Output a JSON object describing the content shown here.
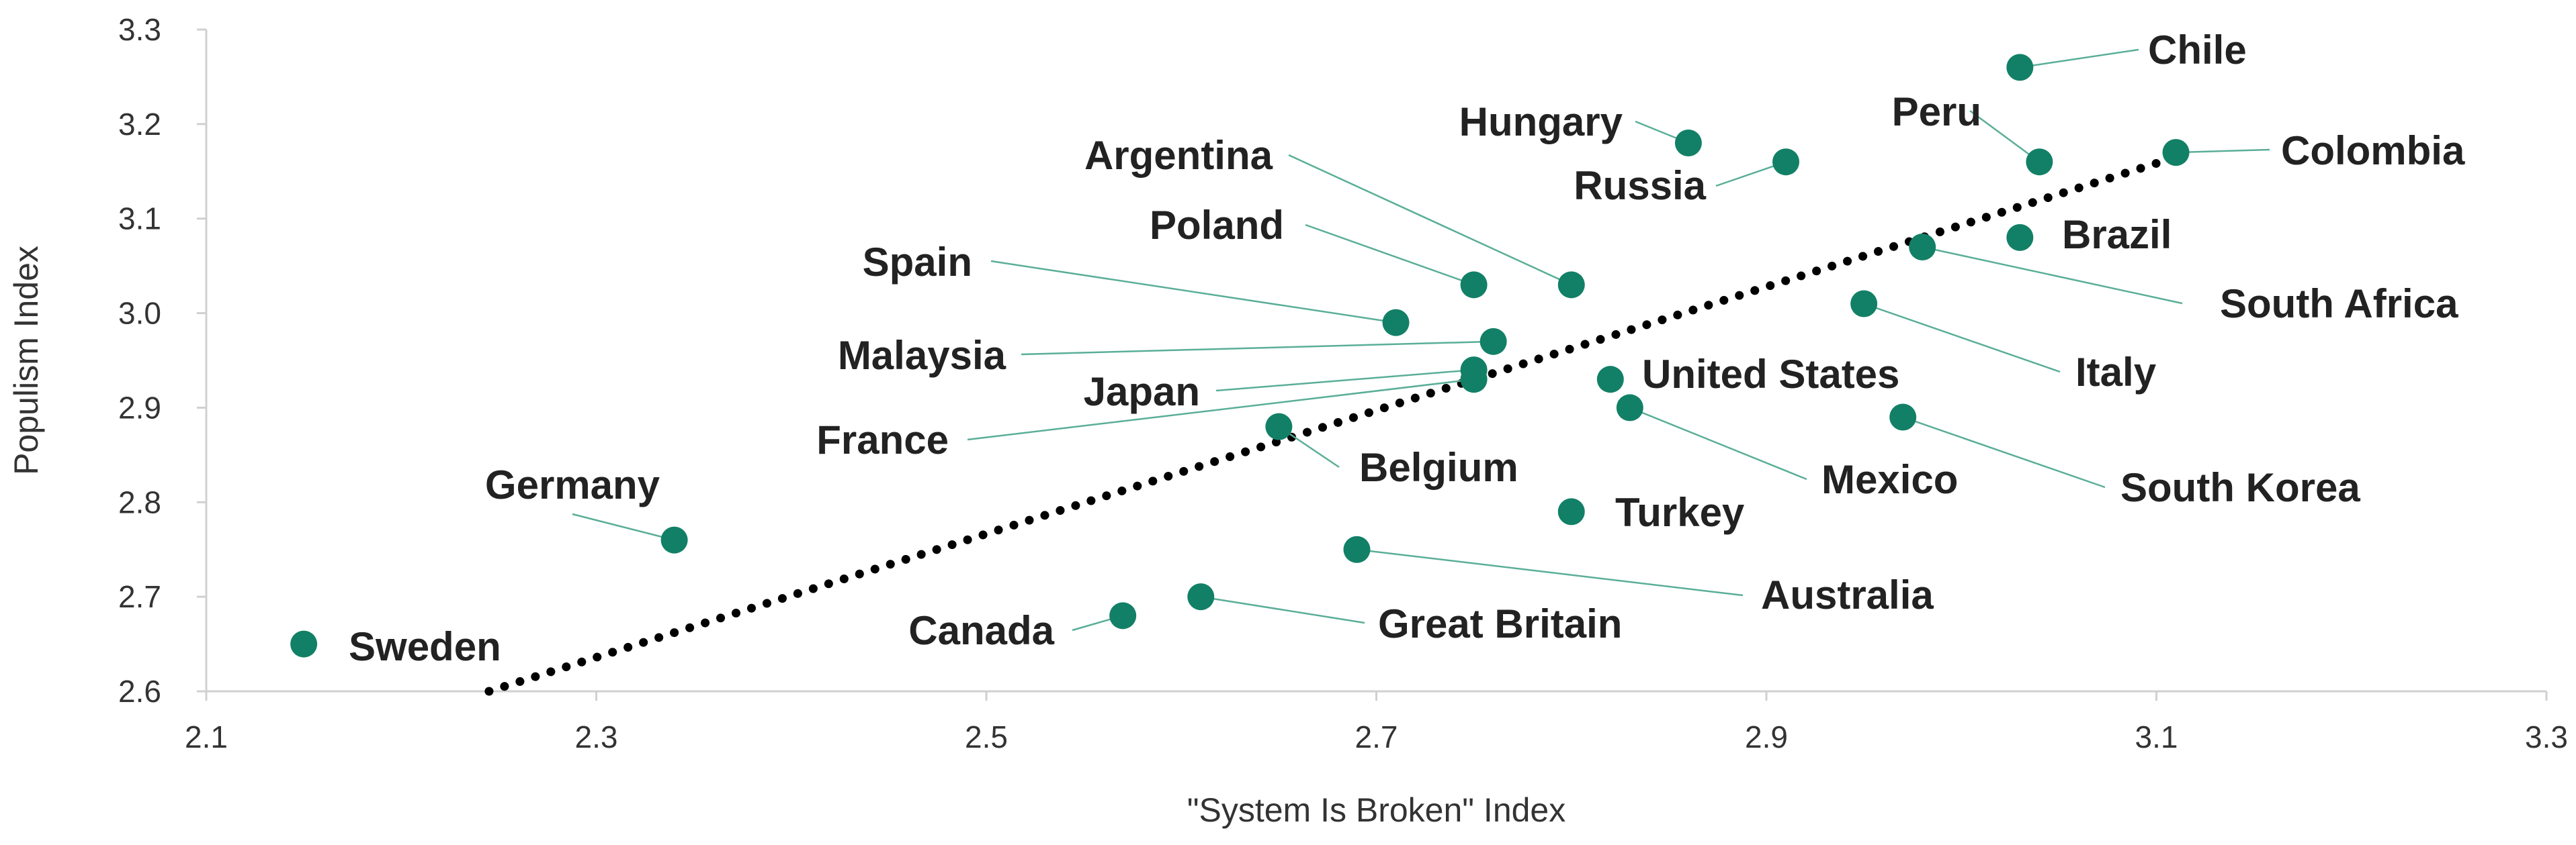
{
  "colors": {
    "point": "#128066",
    "leader": "#5aae98",
    "trend": "#000000",
    "axis": "#d0d0d0"
  },
  "chart_data": {
    "type": "scatter",
    "xlabel": "\"System Is Broken\" Index",
    "ylabel": "Populism Index",
    "xlim": [
      2.1,
      3.3
    ],
    "ylim": [
      2.6,
      3.3
    ],
    "xticks": [
      "2.1",
      "2.3",
      "2.5",
      "2.7",
      "2.9",
      "3.1",
      "3.3"
    ],
    "yticks": [
      "2.6",
      "2.7",
      "2.8",
      "2.9",
      "3.0",
      "3.1",
      "3.2",
      "3.3"
    ],
    "grid": false,
    "trendline": {
      "style": "dotted",
      "x": [
        2.245,
        3.11
      ],
      "y": [
        2.6,
        3.165
      ]
    },
    "points": [
      {
        "label": "Chile",
        "x": 3.03,
        "y": 3.26
      },
      {
        "label": "Colombia",
        "x": 3.11,
        "y": 3.17
      },
      {
        "label": "Peru",
        "x": 3.04,
        "y": 3.16
      },
      {
        "label": "Hungary",
        "x": 2.86,
        "y": 3.18
      },
      {
        "label": "Russia",
        "x": 2.91,
        "y": 3.16
      },
      {
        "label": "Brazil",
        "x": 3.03,
        "y": 3.08
      },
      {
        "label": "South Africa",
        "x": 2.98,
        "y": 3.07
      },
      {
        "label": "Argentina",
        "x": 2.8,
        "y": 3.03
      },
      {
        "label": "Poland",
        "x": 2.75,
        "y": 3.03
      },
      {
        "label": "Spain",
        "x": 2.71,
        "y": 2.99
      },
      {
        "label": "Malaysia",
        "x": 2.76,
        "y": 2.97
      },
      {
        "label": "Japan",
        "x": 2.75,
        "y": 2.94
      },
      {
        "label": "France",
        "x": 2.75,
        "y": 2.93
      },
      {
        "label": "Italy",
        "x": 2.95,
        "y": 3.01
      },
      {
        "label": "United States",
        "x": 2.82,
        "y": 2.93
      },
      {
        "label": "Mexico",
        "x": 2.83,
        "y": 2.9
      },
      {
        "label": "South Korea",
        "x": 2.97,
        "y": 2.89
      },
      {
        "label": "Belgium",
        "x": 2.65,
        "y": 2.88
      },
      {
        "label": "Turkey",
        "x": 2.8,
        "y": 2.79
      },
      {
        "label": "Germany",
        "x": 2.34,
        "y": 2.76
      },
      {
        "label": "Australia",
        "x": 2.69,
        "y": 2.75
      },
      {
        "label": "Great Britain",
        "x": 2.61,
        "y": 2.7
      },
      {
        "label": "Canada",
        "x": 2.57,
        "y": 2.68
      },
      {
        "label": "Sweden",
        "x": 2.15,
        "y": 2.65
      }
    ]
  }
}
